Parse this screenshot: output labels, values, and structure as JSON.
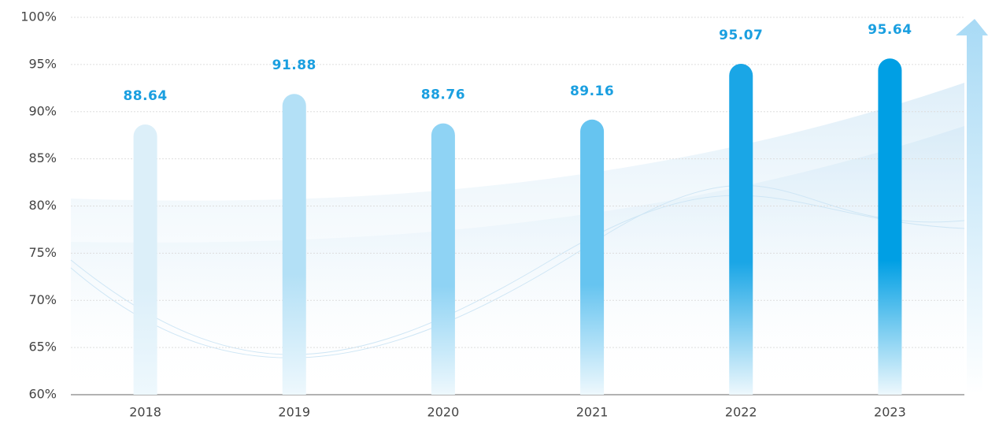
{
  "chart_data": {
    "type": "bar",
    "categories": [
      "2018",
      "2019",
      "2020",
      "2021",
      "2022",
      "2023"
    ],
    "values": [
      88.64,
      91.88,
      88.76,
      89.16,
      95.07,
      95.64
    ],
    "colors": [
      "#dceff9",
      "#b3e0f6",
      "#8fd3f4",
      "#66c4f0",
      "#1aa6e6",
      "#009fe4"
    ],
    "ylim": [
      60,
      100
    ],
    "yticks": [
      {
        "value": 60,
        "label": "60%"
      },
      {
        "value": 65,
        "label": "65%"
      },
      {
        "value": 70,
        "label": "70%"
      },
      {
        "value": 75,
        "label": "75%"
      },
      {
        "value": 80,
        "label": "80%"
      },
      {
        "value": 85,
        "label": "85%"
      },
      {
        "value": 90,
        "label": "90%"
      },
      {
        "value": 95,
        "label": "95%"
      },
      {
        "value": 100,
        "label": "100%"
      }
    ],
    "grid": true
  }
}
